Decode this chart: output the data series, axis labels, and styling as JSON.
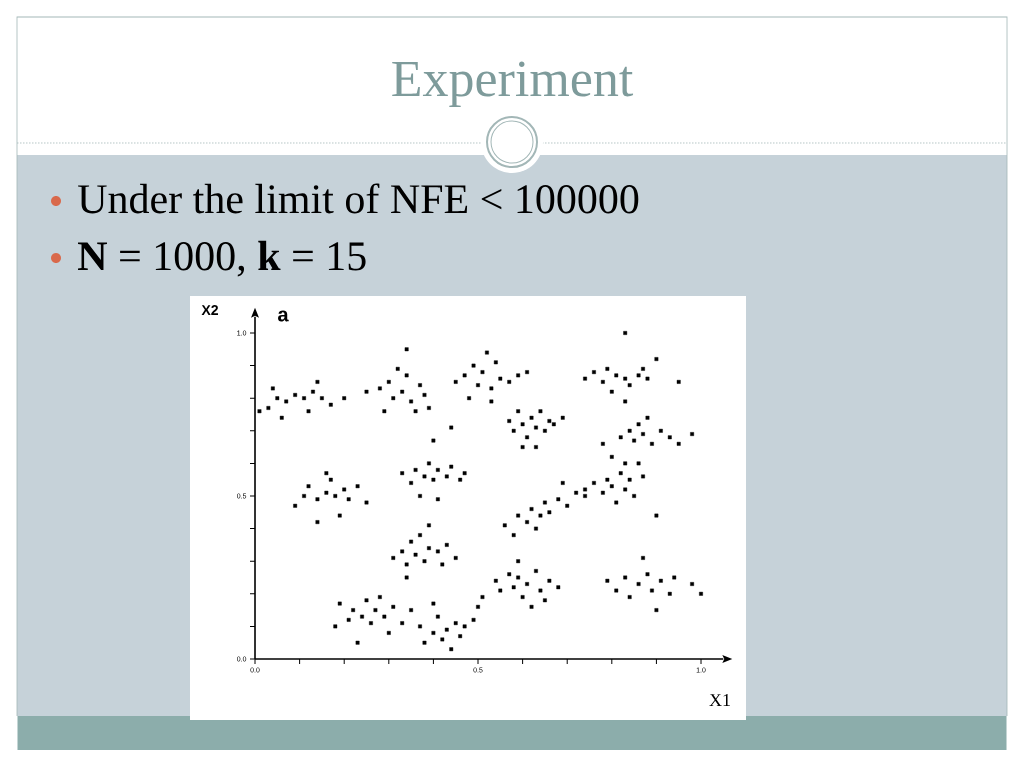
{
  "chart_data": {
    "type": "scatter",
    "title": "Experiment",
    "annotations": [
      "Under the limit of NFE < 100000",
      "**N** = 1000, **k** = 15",
      "a"
    ],
    "xlabel": "X1",
    "ylabel": "X2",
    "xlim": [
      0,
      1.05
    ],
    "ylim": [
      0,
      1.05
    ],
    "xticks": [
      {
        "value": 0,
        "label": "0.0"
      },
      {
        "value": 0.1,
        "label": null
      },
      {
        "value": 0.2,
        "label": null
      },
      {
        "value": 0.3,
        "label": null
      },
      {
        "value": 0.4,
        "label": null
      },
      0.5,
      {
        "value": 0.6,
        "label": null
      },
      {
        "value": 0.7,
        "label": null
      },
      {
        "value": 0.8,
        "label": null
      },
      {
        "value": 0.9,
        "label": null
      },
      {
        "value": 1,
        "label": "1.0"
      }
    ],
    "yticks": [
      {
        "value": 0,
        "label": "0.0"
      },
      {
        "value": 0.1,
        "label": null
      },
      {
        "value": 0.2,
        "label": null
      },
      {
        "value": 0.3,
        "label": null
      },
      {
        "value": 0.4,
        "label": null
      },
      0.5,
      {
        "value": 0.6,
        "label": null
      },
      {
        "value": 0.7,
        "label": null
      },
      {
        "value": 0.8,
        "label": null
      },
      {
        "value": 0.9,
        "label": null
      },
      {
        "value": 1,
        "label": "1.0"
      }
    ],
    "marker": "square",
    "series": [
      {
        "color": "#000000",
        "x": [
          0.01,
          0.03,
          0.04,
          0.05,
          0.07,
          0.09,
          0.11,
          0.13,
          0.15,
          0.17,
          0.2,
          0.06,
          0.12,
          0.14
        ],
        "values": [
          0.76,
          0.77,
          0.83,
          0.8,
          0.79,
          0.81,
          0.8,
          0.82,
          0.8,
          0.78,
          0.8,
          0.74,
          0.76,
          0.85
        ]
      },
      {
        "color": "#000000",
        "x": [
          0.25,
          0.28,
          0.3,
          0.31,
          0.33,
          0.34,
          0.35,
          0.37,
          0.38,
          0.39,
          0.34,
          0.32,
          0.29,
          0.36
        ],
        "values": [
          0.82,
          0.83,
          0.85,
          0.8,
          0.82,
          0.87,
          0.79,
          0.84,
          0.81,
          0.77,
          0.95,
          0.89,
          0.76,
          0.76
        ]
      },
      {
        "color": "#000000",
        "x": [
          0.45,
          0.47,
          0.49,
          0.5,
          0.51,
          0.53,
          0.54,
          0.55,
          0.57,
          0.59,
          0.52,
          0.61,
          0.48,
          0.53
        ],
        "values": [
          0.85,
          0.87,
          0.9,
          0.84,
          0.88,
          0.83,
          0.91,
          0.86,
          0.85,
          0.87,
          0.94,
          0.88,
          0.8,
          0.79
        ]
      },
      {
        "color": "#000000",
        "x": [
          0.74,
          0.76,
          0.78,
          0.79,
          0.81,
          0.83,
          0.84,
          0.86,
          0.88,
          0.87,
          0.8,
          0.83,
          0.95,
          0.9,
          0.83
        ],
        "values": [
          0.86,
          0.88,
          0.85,
          0.89,
          0.87,
          0.86,
          0.84,
          0.87,
          0.86,
          0.89,
          0.82,
          0.79,
          0.85,
          0.92,
          1.0
        ]
      },
      {
        "color": "#000000",
        "x": [
          0.57,
          0.58,
          0.59,
          0.6,
          0.61,
          0.62,
          0.63,
          0.64,
          0.65,
          0.66,
          0.6,
          0.63,
          0.67,
          0.69
        ],
        "values": [
          0.73,
          0.7,
          0.76,
          0.72,
          0.68,
          0.74,
          0.71,
          0.76,
          0.7,
          0.73,
          0.65,
          0.65,
          0.72,
          0.74
        ]
      },
      {
        "color": "#000000",
        "x": [
          0.78,
          0.8,
          0.82,
          0.84,
          0.85,
          0.86,
          0.87,
          0.88,
          0.89,
          0.91,
          0.93,
          0.98,
          0.95,
          0.83
        ],
        "values": [
          0.66,
          0.62,
          0.68,
          0.7,
          0.67,
          0.72,
          0.69,
          0.74,
          0.66,
          0.7,
          0.68,
          0.69,
          0.66,
          0.6
        ]
      },
      {
        "color": "#000000",
        "x": [
          0.33,
          0.35,
          0.36,
          0.38,
          0.39,
          0.4,
          0.41,
          0.43,
          0.44,
          0.46,
          0.37,
          0.41,
          0.4,
          0.44,
          0.47
        ],
        "values": [
          0.57,
          0.54,
          0.58,
          0.56,
          0.6,
          0.55,
          0.58,
          0.56,
          0.59,
          0.55,
          0.5,
          0.49,
          0.67,
          0.71,
          0.57
        ]
      },
      {
        "color": "#000000",
        "x": [
          0.09,
          0.11,
          0.12,
          0.14,
          0.16,
          0.17,
          0.18,
          0.2,
          0.21,
          0.23,
          0.25,
          0.14,
          0.19,
          0.16
        ],
        "values": [
          0.47,
          0.5,
          0.53,
          0.49,
          0.51,
          0.55,
          0.5,
          0.52,
          0.49,
          0.53,
          0.48,
          0.42,
          0.44,
          0.57
        ]
      },
      {
        "color": "#000000",
        "x": [
          0.56,
          0.58,
          0.59,
          0.61,
          0.62,
          0.64,
          0.65,
          0.66,
          0.68,
          0.7,
          0.72,
          0.74,
          0.63,
          0.69
        ],
        "values": [
          0.41,
          0.38,
          0.44,
          0.42,
          0.46,
          0.44,
          0.48,
          0.45,
          0.49,
          0.47,
          0.51,
          0.5,
          0.4,
          0.54
        ]
      },
      {
        "color": "#000000",
        "x": [
          0.74,
          0.76,
          0.78,
          0.79,
          0.8,
          0.82,
          0.83,
          0.84,
          0.85,
          0.87,
          0.81,
          0.86,
          0.9
        ],
        "values": [
          0.52,
          0.54,
          0.51,
          0.55,
          0.53,
          0.57,
          0.52,
          0.55,
          0.5,
          0.56,
          0.48,
          0.6,
          0.44
        ]
      },
      {
        "color": "#000000",
        "x": [
          0.31,
          0.33,
          0.34,
          0.35,
          0.36,
          0.37,
          0.38,
          0.39,
          0.41,
          0.42,
          0.43,
          0.45,
          0.34,
          0.39
        ],
        "values": [
          0.31,
          0.33,
          0.29,
          0.36,
          0.32,
          0.38,
          0.3,
          0.34,
          0.33,
          0.29,
          0.35,
          0.31,
          0.25,
          0.41
        ]
      },
      {
        "color": "#000000",
        "x": [
          0.18,
          0.19,
          0.21,
          0.22,
          0.24,
          0.25,
          0.26,
          0.27,
          0.28,
          0.29,
          0.31,
          0.33,
          0.35,
          0.23,
          0.3
        ],
        "values": [
          0.1,
          0.17,
          0.12,
          0.15,
          0.13,
          0.18,
          0.11,
          0.15,
          0.19,
          0.13,
          0.16,
          0.11,
          0.15,
          0.05,
          0.08
        ]
      },
      {
        "color": "#000000",
        "x": [
          0.37,
          0.38,
          0.4,
          0.41,
          0.42,
          0.43,
          0.44,
          0.45,
          0.46,
          0.47,
          0.49,
          0.5,
          0.51,
          0.4
        ],
        "values": [
          0.1,
          0.05,
          0.08,
          0.13,
          0.06,
          0.09,
          0.03,
          0.11,
          0.07,
          0.1,
          0.12,
          0.16,
          0.19,
          0.17
        ]
      },
      {
        "color": "#000000",
        "x": [
          0.54,
          0.55,
          0.57,
          0.58,
          0.59,
          0.6,
          0.61,
          0.63,
          0.64,
          0.66,
          0.68,
          0.62,
          0.59,
          0.65
        ],
        "values": [
          0.24,
          0.21,
          0.26,
          0.22,
          0.25,
          0.19,
          0.23,
          0.27,
          0.21,
          0.24,
          0.22,
          0.16,
          0.3,
          0.18
        ]
      },
      {
        "color": "#000000",
        "x": [
          0.79,
          0.81,
          0.83,
          0.84,
          0.86,
          0.88,
          0.89,
          0.91,
          0.93,
          0.94,
          0.98,
          1.0,
          0.87,
          0.9
        ],
        "values": [
          0.24,
          0.21,
          0.25,
          0.19,
          0.23,
          0.26,
          0.21,
          0.24,
          0.2,
          0.25,
          0.23,
          0.2,
          0.31,
          0.15
        ]
      }
    ]
  }
}
